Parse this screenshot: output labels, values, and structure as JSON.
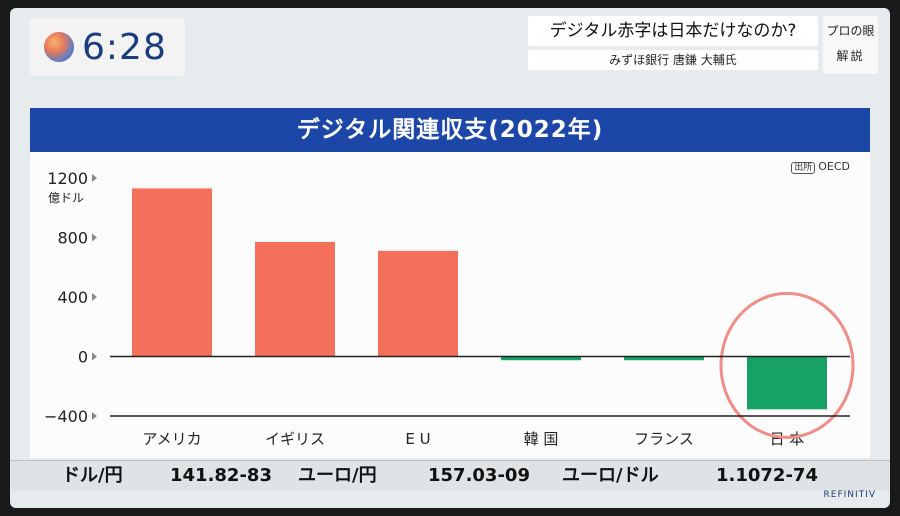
{
  "clock": {
    "time": "6:28"
  },
  "topic": {
    "title": "デジタル赤字は日本だけなのか?",
    "subtitle": "みずほ銀行 唐鎌 大輔氏"
  },
  "badge": {
    "line1": "プロの眼",
    "line2": "解説"
  },
  "source": {
    "tag": "出所",
    "name": "OECD"
  },
  "ticker": {
    "items": [
      {
        "label": "ドル/円",
        "value": "141.82-83"
      },
      {
        "label": "ユーロ/円",
        "value": "157.03-09"
      },
      {
        "label": "ユーロ/ドル",
        "value": "1.1072-74"
      }
    ],
    "provider": "REFINITIV"
  },
  "colors": {
    "banner": "#1c47a8",
    "positive": "#f4705a",
    "negative": "#18a164",
    "highlight_circle": "#ef8d86"
  },
  "chart_data": {
    "type": "bar",
    "title": "デジタル関連収支(2022年)",
    "ylabel": "億ドル",
    "ylim": [
      -400,
      1200
    ],
    "yticks": [
      1200,
      800,
      400,
      0,
      -400
    ],
    "ytick_labels": [
      "1200",
      "800",
      "400",
      "0",
      "−400"
    ],
    "categories": [
      "アメリカ",
      "イギリス",
      "E U",
      "韓 国",
      "フランス",
      "日 本"
    ],
    "values": [
      1130,
      770,
      710,
      -25,
      -25,
      -355
    ],
    "highlight": "日 本",
    "grid": false
  }
}
